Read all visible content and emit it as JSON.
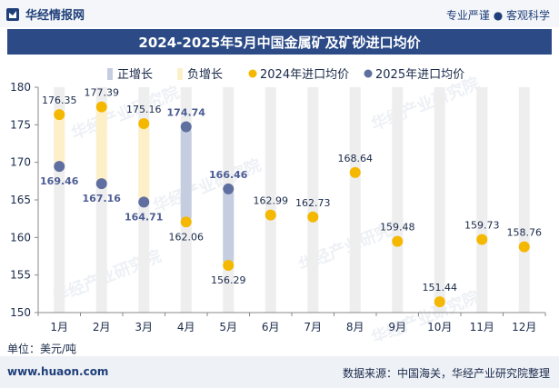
{
  "header": {
    "brand": "华经情报网",
    "slogan": "专业严谨 ● 客观科学"
  },
  "footer": {
    "site": "www.huaon.com",
    "source": "数据来源：中国海关，华经产业研究院整理"
  },
  "watermark": "华经产业研究院",
  "watermark_url": "www.huaon.com",
  "colors": {
    "title_bg": "#2b4a86",
    "pos_bar": "#c5cde0",
    "neg_bar": "#fdf0c9",
    "dot_2024": "#f5b800",
    "dot_2025": "#5f6fa0",
    "column_bg": "#eeeeee"
  },
  "chart_data": {
    "type": "scatter",
    "title": "2024-2025年5月中国金属矿及矿砂进口均价",
    "unit_label": "单位：美元/吨",
    "ylim": [
      150,
      180
    ],
    "yticks": [
      150,
      155,
      160,
      165,
      170,
      175,
      180
    ],
    "categories": [
      "1月",
      "2月",
      "3月",
      "4月",
      "5月",
      "6月",
      "7月",
      "8月",
      "9月",
      "10月",
      "11月",
      "12月"
    ],
    "legend": [
      "正增长",
      "负增长",
      "2024年进口均价",
      "2025年进口均价"
    ],
    "series": [
      {
        "name": "2024年进口均价",
        "values": [
          176.35,
          177.39,
          175.16,
          162.06,
          156.29,
          162.99,
          162.73,
          168.64,
          159.48,
          151.44,
          159.73,
          158.76
        ]
      },
      {
        "name": "2025年进口均价",
        "values": [
          169.46,
          167.16,
          164.71,
          174.74,
          166.46,
          null,
          null,
          null,
          null,
          null,
          null,
          null
        ]
      }
    ]
  }
}
